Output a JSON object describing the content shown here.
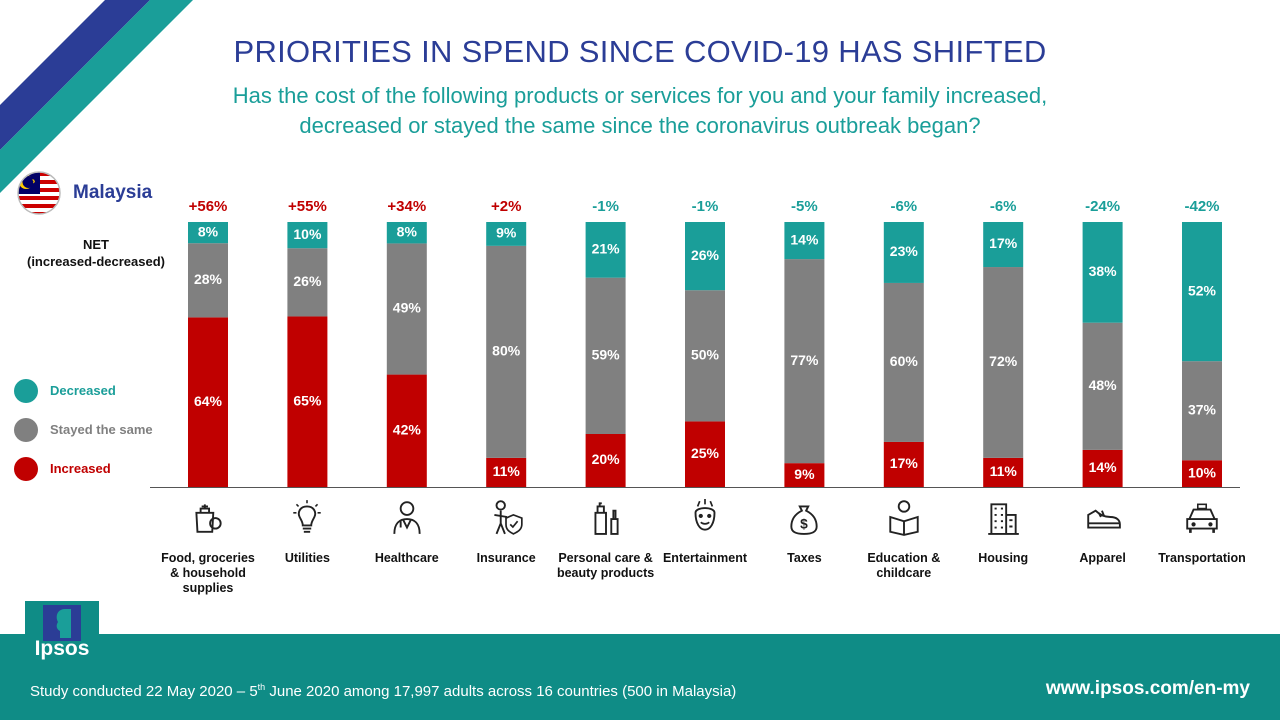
{
  "header": {
    "title": "PRIORITIES IN SPEND SINCE COVID-19 HAS SHIFTED",
    "subtitle_line1": "Has the cost of the following products or services for you and your family increased,",
    "subtitle_line2": "decreased or stayed the same since the coronavirus outbreak began?",
    "country": "Malaysia"
  },
  "net_label_line1": "NET",
  "net_label_line2": "(increased-decreased)",
  "legend": [
    {
      "label": "Decreased",
      "color": "#1a9e99"
    },
    {
      "label": "Stayed the same",
      "color": "#808080"
    },
    {
      "label": "Increased",
      "color": "#c00000"
    }
  ],
  "colors": {
    "increased": "#c00000",
    "same": "#808080",
    "decreased": "#1a9e99",
    "title": "#2b3d96",
    "footer": "#0f8c86"
  },
  "footer": {
    "study_prefix": "Study conducted 22 May 2020 – 5",
    "study_sup": "th",
    "study_suffix": " June 2020 among 17,997 adults across 16 countries (500 in Malaysia)",
    "url": "www.ipsos.com/en-my",
    "logo_text": "Ipsos"
  },
  "chart_data": {
    "type": "bar",
    "stacked": true,
    "categories": [
      "Food, groceries & household supplies",
      "Utilities",
      "Healthcare",
      "Insurance",
      "Personal care & beauty products",
      "Entertainment",
      "Taxes",
      "Education & childcare",
      "Housing",
      "Apparel",
      "Transportation"
    ],
    "category_icons": [
      "grocery-bag-icon",
      "lightbulb-icon",
      "doctor-icon",
      "insurance-shield-icon",
      "beauty-products-icon",
      "entertainment-mask-icon",
      "money-bag-icon",
      "reading-person-icon",
      "building-icon",
      "sneaker-icon",
      "car-icon"
    ],
    "series": [
      {
        "name": "Increased",
        "values": [
          64,
          65,
          42,
          11,
          20,
          25,
          9,
          17,
          11,
          14,
          10
        ]
      },
      {
        "name": "Stayed the same",
        "values": [
          28,
          26,
          49,
          80,
          59,
          50,
          77,
          60,
          72,
          48,
          37
        ]
      },
      {
        "name": "Decreased",
        "values": [
          8,
          10,
          8,
          9,
          21,
          26,
          14,
          23,
          17,
          38,
          52
        ]
      }
    ],
    "net": [
      "+56%",
      "+55%",
      "+34%",
      "+2%",
      "-1%",
      "-1%",
      "-5%",
      "-6%",
      "-6%",
      "-24%",
      "-42%"
    ],
    "ylim": [
      0,
      100
    ],
    "legend_position": "left"
  }
}
